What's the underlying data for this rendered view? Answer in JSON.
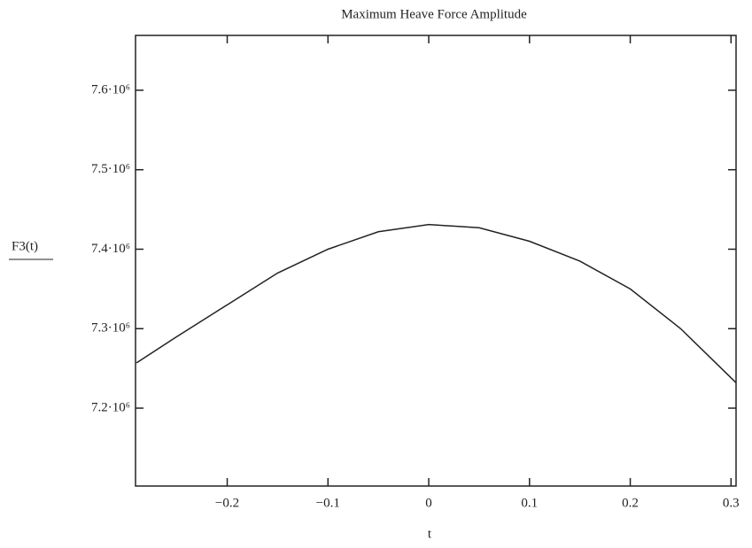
{
  "chart_data": {
    "type": "line",
    "title": "Maximum Heave Force Amplitude",
    "x_label": "t",
    "y_label": "F3(t)",
    "x": [
      -0.29,
      -0.25,
      -0.2,
      -0.15,
      -0.1,
      -0.05,
      0,
      0.05,
      0.1,
      0.15,
      0.2,
      0.25,
      0.305
    ],
    "series": [
      {
        "name": "F3(t)",
        "color": "#222222",
        "values": [
          7257000,
          7290000,
          7330000,
          7370000,
          7400000,
          7422000,
          7431000,
          7427000,
          7410000,
          7385000,
          7350000,
          7300000,
          7232000
        ]
      }
    ],
    "xlim": [
      -0.291,
      0.305
    ],
    "ylim": [
      7102000,
      7669000
    ],
    "xticks": [
      {
        "value": -0.2,
        "label": "−0.2"
      },
      {
        "value": -0.1,
        "label": "−0.1"
      },
      0,
      0.1,
      0.2,
      0.3
    ],
    "yticks": [
      {
        "value": 7200000,
        "label": "7.2·10⁶"
      },
      {
        "value": 7300000,
        "label": "7.3·10⁶"
      },
      {
        "value": 7400000,
        "label": "7.4·10⁶"
      },
      {
        "value": 7500000,
        "label": "7.5·10⁶"
      },
      {
        "value": 7600000,
        "label": "7.6·10⁶"
      }
    ],
    "grid": false
  }
}
